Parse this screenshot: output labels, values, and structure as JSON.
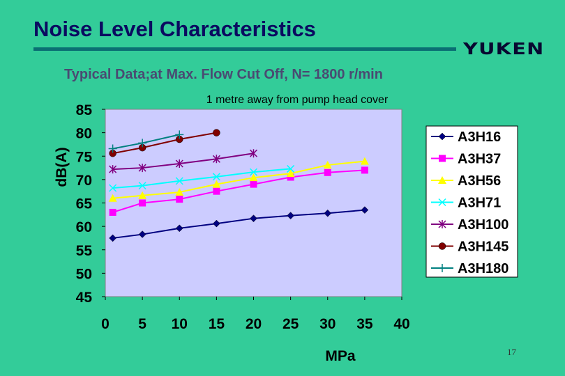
{
  "slide": {
    "title": "Noise Level Characteristics",
    "logo": "YUKEN",
    "subtitle": "Typical Data;at Max. Flow Cut Off, N= 1800 r/min",
    "page_number": "17"
  },
  "colors": {
    "background": "#33cc99",
    "plot_area": "#ccccff",
    "title": "#0a0a60",
    "rule": "#0a6f73"
  },
  "chart_data": {
    "type": "line",
    "title": "1 metre away from pump head cover",
    "xlabel": "MPa",
    "ylabel": "dB(A)",
    "xlim": [
      0,
      40
    ],
    "ylim": [
      45,
      85
    ],
    "xticks": [
      0,
      5,
      10,
      15,
      20,
      25,
      30,
      35,
      40
    ],
    "yticks": [
      45,
      50,
      55,
      60,
      65,
      70,
      75,
      80,
      85
    ],
    "grid": false,
    "legend": "right",
    "series": [
      {
        "name": "A3H16",
        "color": "#000080",
        "marker": "diamond",
        "x": [
          1,
          5,
          10,
          15,
          20,
          25,
          30,
          35
        ],
        "y": [
          57.5,
          58.3,
          59.6,
          60.6,
          61.7,
          62.3,
          62.8,
          63.5
        ]
      },
      {
        "name": "A3H37",
        "color": "#ff00ff",
        "marker": "square",
        "x": [
          1,
          5,
          10,
          15,
          20,
          25,
          30,
          35
        ],
        "y": [
          63.0,
          65.0,
          65.8,
          67.5,
          69.0,
          70.5,
          71.5,
          72.0
        ]
      },
      {
        "name": "A3H56",
        "color": "#ffff00",
        "marker": "triangle",
        "x": [
          1,
          5,
          10,
          15,
          20,
          25,
          30,
          35
        ],
        "y": [
          66.0,
          66.6,
          67.3,
          69.0,
          70.4,
          71.3,
          73.1,
          73.9
        ]
      },
      {
        "name": "A3H71",
        "color": "#00ffff",
        "marker": "x",
        "x": [
          1,
          5,
          10,
          15,
          20,
          25
        ],
        "y": [
          68.2,
          68.7,
          69.7,
          70.6,
          71.6,
          72.3
        ]
      },
      {
        "name": "A3H100",
        "color": "#800080",
        "marker": "star",
        "x": [
          1,
          5,
          10,
          15,
          20
        ],
        "y": [
          72.2,
          72.5,
          73.4,
          74.4,
          75.6
        ]
      },
      {
        "name": "A3H145",
        "color": "#800000",
        "marker": "circle",
        "x": [
          1,
          5,
          10,
          15
        ],
        "y": [
          75.6,
          76.8,
          78.6,
          80.0
        ]
      },
      {
        "name": "A3H180",
        "color": "#008080",
        "marker": "plus",
        "x": [
          1,
          5,
          10
        ],
        "y": [
          76.6,
          77.8,
          79.6
        ]
      }
    ]
  }
}
